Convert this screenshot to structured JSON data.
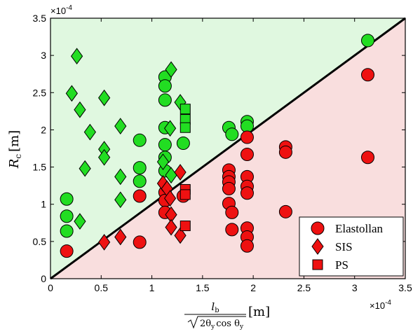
{
  "chart_data": {
    "type": "scatter",
    "xlim": [
      0,
      3.5
    ],
    "ylim": [
      0,
      3.5
    ],
    "x_ticks": [
      "0",
      "0.5",
      "1",
      "1.5",
      "2",
      "2.5",
      "3",
      "3.5"
    ],
    "y_ticks": [
      "0",
      "0.5",
      "1",
      "1.5",
      "2",
      "2.5",
      "3",
      "3.5"
    ],
    "x_multiplier": "×10",
    "x_multiplier_exp": "-4",
    "y_multiplier": "×10",
    "y_multiplier_exp": "-4",
    "ylabel_main": "R",
    "ylabel_sub": "c",
    "ylabel_unit": "[m]",
    "xlabel_num_main": "l",
    "xlabel_num_sub": "b",
    "xlabel_den": "2θ",
    "xlabel_den_sub": "y",
    "xlabel_den_mid": "cos θ",
    "xlabel_unit": "[m]",
    "diagonal_line": [
      [
        0,
        0
      ],
      [
        3.5,
        3.5
      ]
    ],
    "upper_region_color": "#e0f8e0",
    "lower_region_color": "#f9dede",
    "green": "#22dd22",
    "red": "#ee1111",
    "legend_position": "bottom-right",
    "legend": [
      {
        "label": "Elastollan",
        "marker": "circle"
      },
      {
        "label": "SIS",
        "marker": "diamond"
      },
      {
        "label": "PS",
        "marker": "square"
      }
    ],
    "series": [
      {
        "material": "Elastollan",
        "marker": "circle",
        "green_points": [
          [
            0.16,
            1.07
          ],
          [
            0.16,
            0.84
          ],
          [
            0.16,
            0.64
          ],
          [
            0.88,
            1.86
          ],
          [
            0.88,
            1.49
          ],
          [
            0.88,
            1.31
          ],
          [
            1.13,
            2.71
          ],
          [
            1.13,
            2.59
          ],
          [
            1.13,
            2.4
          ],
          [
            1.13,
            2.03
          ],
          [
            1.13,
            1.8
          ],
          [
            1.13,
            1.63
          ],
          [
            1.13,
            1.45
          ],
          [
            1.31,
            1.82
          ],
          [
            1.76,
            2.03
          ],
          [
            1.79,
            1.94
          ],
          [
            1.94,
            2.11
          ],
          [
            1.94,
            2.05
          ],
          [
            3.13,
            3.2
          ]
        ],
        "red_points": [
          [
            0.16,
            0.37
          ],
          [
            0.88,
            1.11
          ],
          [
            0.88,
            0.49
          ],
          [
            1.13,
            1.16
          ],
          [
            1.13,
            1.05
          ],
          [
            1.13,
            0.89
          ],
          [
            1.31,
            1.11
          ],
          [
            1.76,
            1.46
          ],
          [
            1.76,
            1.37
          ],
          [
            1.76,
            1.3
          ],
          [
            1.76,
            1.21
          ],
          [
            1.76,
            1.01
          ],
          [
            1.79,
            0.89
          ],
          [
            1.79,
            0.66
          ],
          [
            1.94,
            1.9
          ],
          [
            1.94,
            1.67
          ],
          [
            1.94,
            1.37
          ],
          [
            1.94,
            1.24
          ],
          [
            1.94,
            1.15
          ],
          [
            1.94,
            0.68
          ],
          [
            1.94,
            0.56
          ],
          [
            1.94,
            0.44
          ],
          [
            2.32,
            1.77
          ],
          [
            2.32,
            1.7
          ],
          [
            2.32,
            0.9
          ],
          [
            3.13,
            2.74
          ],
          [
            3.13,
            1.63
          ]
        ]
      },
      {
        "material": "SIS",
        "marker": "diamond",
        "green_points": [
          [
            0.26,
            2.99
          ],
          [
            0.21,
            2.49
          ],
          [
            0.29,
            2.27
          ],
          [
            0.29,
            0.77
          ],
          [
            0.39,
            1.97
          ],
          [
            0.34,
            1.48
          ],
          [
            0.53,
            2.43
          ],
          [
            0.53,
            1.74
          ],
          [
            0.53,
            1.63
          ],
          [
            0.69,
            2.05
          ],
          [
            0.69,
            1.37
          ],
          [
            0.69,
            1.06
          ],
          [
            1.19,
            2.81
          ],
          [
            1.18,
            2.02
          ],
          [
            1.11,
            1.57
          ],
          [
            1.19,
            1.39
          ],
          [
            1.28,
            2.37
          ]
        ],
        "red_points": [
          [
            0.53,
            0.49
          ],
          [
            0.69,
            0.56
          ],
          [
            1.11,
            1.28
          ],
          [
            1.15,
            1.21
          ],
          [
            1.18,
            1.08
          ],
          [
            1.19,
            0.86
          ],
          [
            1.19,
            0.69
          ],
          [
            1.28,
            1.43
          ],
          [
            1.28,
            0.58
          ]
        ]
      },
      {
        "material": "PS",
        "marker": "square",
        "green_points": [
          [
            1.33,
            2.28
          ],
          [
            1.33,
            2.14
          ],
          [
            1.33,
            2.03
          ]
        ],
        "red_points": [
          [
            1.33,
            1.2
          ],
          [
            1.33,
            1.13
          ],
          [
            1.33,
            0.71
          ]
        ]
      }
    ]
  }
}
